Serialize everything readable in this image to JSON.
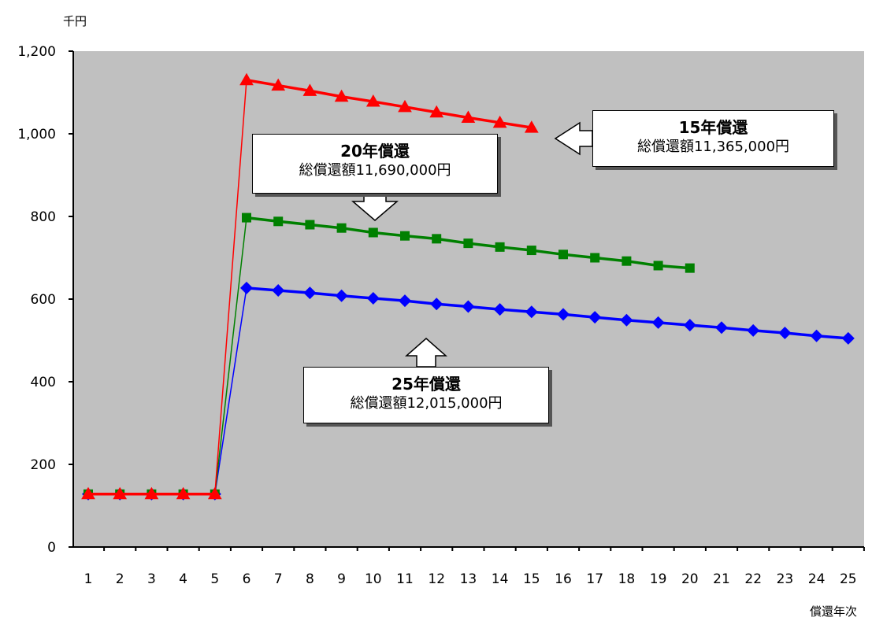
{
  "chart_data": {
    "type": "line",
    "ylabel": "千円",
    "xlabel": "償還年次",
    "ylim": [
      0,
      1200
    ],
    "yticks": [
      0,
      200,
      400,
      600,
      800,
      1000,
      1200
    ],
    "ytick_labels": [
      "0",
      "200",
      "400",
      "600",
      "800",
      "1,000",
      "1,200"
    ],
    "x": [
      1,
      2,
      3,
      4,
      5,
      6,
      7,
      8,
      9,
      10,
      11,
      12,
      13,
      14,
      15,
      16,
      17,
      18,
      19,
      20,
      21,
      22,
      23,
      24,
      25
    ],
    "grid": false,
    "series": [
      {
        "name": "15年償還",
        "color": "#ff0000",
        "marker": "triangle",
        "values": [
          128,
          128,
          128,
          128,
          128,
          1130,
          1117,
          1104,
          1090,
          1078,
          1065,
          1052,
          1039,
          1027,
          1015,
          null,
          null,
          null,
          null,
          null,
          null,
          null,
          null,
          null,
          null
        ]
      },
      {
        "name": "20年償還",
        "color": "#008000",
        "marker": "square",
        "values": [
          128,
          128,
          128,
          128,
          128,
          797,
          788,
          780,
          772,
          761,
          753,
          746,
          735,
          726,
          718,
          708,
          700,
          692,
          681,
          675,
          null,
          null,
          null,
          null,
          null
        ]
      },
      {
        "name": "25年償還",
        "color": "#0000ff",
        "marker": "diamond",
        "values": [
          128,
          128,
          128,
          128,
          128,
          627,
          621,
          615,
          608,
          602,
          596,
          588,
          582,
          575,
          569,
          563,
          556,
          549,
          543,
          537,
          531,
          524,
          518,
          511,
          505
        ]
      }
    ],
    "annotations": [
      {
        "id": "c15",
        "title": "15年償還",
        "text": "総償還額11,365,000円",
        "arrow": "left"
      },
      {
        "id": "c20",
        "title": "20年償還",
        "text": "総償還額11,690,000円",
        "arrow": "down"
      },
      {
        "id": "c25",
        "title": "25年償還",
        "text": "総償還額12,015,000円",
        "arrow": "up"
      }
    ]
  }
}
